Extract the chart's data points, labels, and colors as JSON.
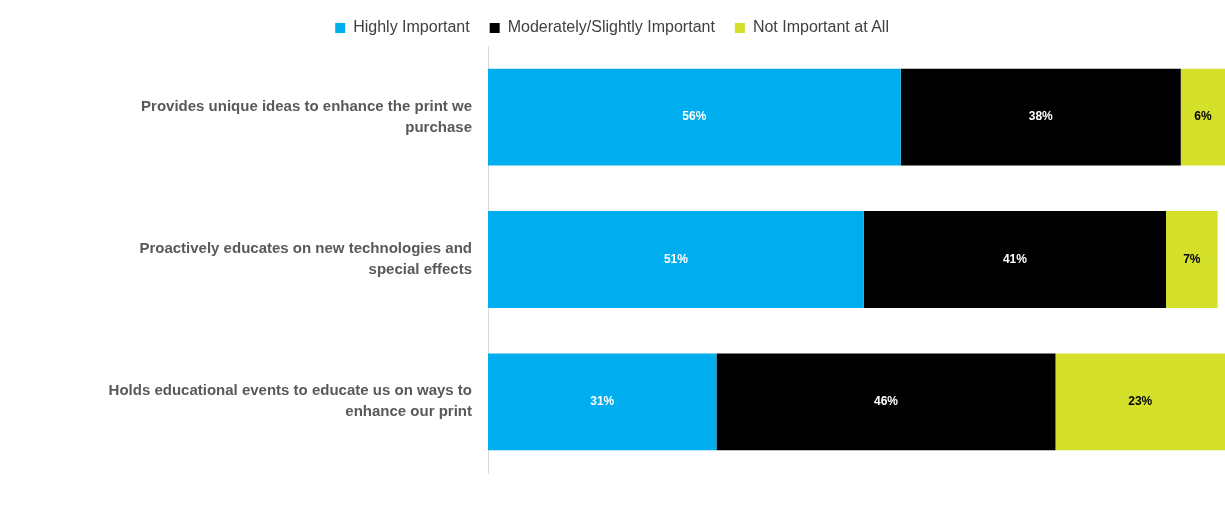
{
  "chart_data": {
    "type": "bar",
    "orientation": "horizontal",
    "stacked": true,
    "categories": [
      "Provides unique ideas to enhance the print we purchase",
      "Proactively educates on new technologies and special effects",
      "Holds educational events to educate us on ways to enhance our print"
    ],
    "series": [
      {
        "name": "Highly Important",
        "color": "#00aeef",
        "values": [
          56,
          51,
          31
        ],
        "value_labels": [
          "56%",
          "51%",
          "31%"
        ]
      },
      {
        "name": "Moderately/Slightly Important",
        "color": "#000000",
        "values": [
          38,
          41,
          46
        ],
        "value_labels": [
          "38%",
          "41%",
          "46%"
        ]
      },
      {
        "name": "Not Important at All",
        "color": "#d4e029",
        "values": [
          6,
          7,
          23
        ],
        "value_labels": [
          "6%",
          "7%",
          "23%"
        ]
      }
    ],
    "xlim": [
      0,
      100
    ],
    "tick_labels": "y",
    "grid": false,
    "legend": "top"
  }
}
